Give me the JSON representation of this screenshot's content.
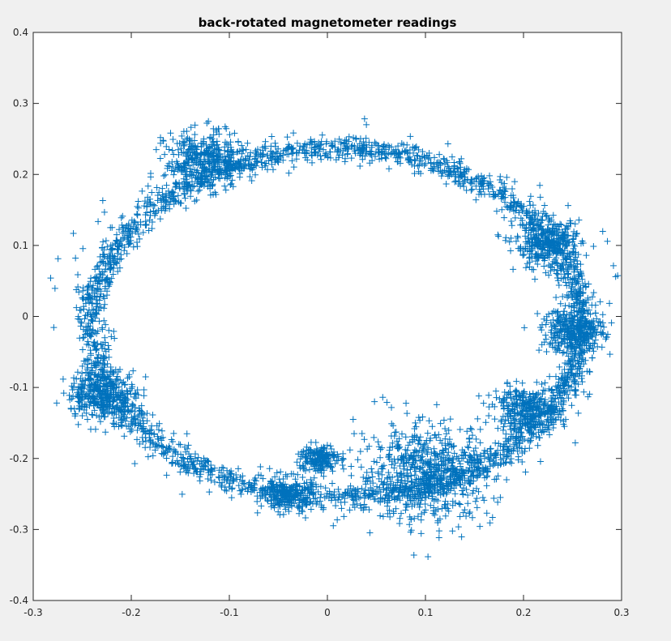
{
  "chart_data": {
    "type": "scatter",
    "title": "back-rotated magnetometer readings",
    "xlabel": "",
    "ylabel": "",
    "xlim": [
      -0.3,
      0.3
    ],
    "ylim": [
      -0.4,
      0.4
    ],
    "xticks": [
      "-0.3",
      "-0.2",
      "-0.1",
      "0",
      "0.1",
      "0.2",
      "0.3"
    ],
    "yticks": [
      "0.4",
      "0.3",
      "0.2",
      "0.1",
      "0",
      "-0.1",
      "-0.2",
      "-0.3",
      "-0.4"
    ],
    "grid": false,
    "legend": "none",
    "marker": "+",
    "color": "#0072BD",
    "series": [
      {
        "ring": {
          "center": [
            0.01,
            -0.01
          ],
          "semi_axes": [
            0.25,
            0.245
          ],
          "tilt_deg": -8,
          "spread": 0.008
        },
        "clusters": [
          {
            "center": [
              -0.125,
              0.22
            ],
            "spread": 0.02
          },
          {
            "center": [
              -0.23,
              -0.11
            ],
            "spread": 0.018
          },
          {
            "center": [
              0.1,
              -0.22
            ],
            "spread": 0.035
          },
          {
            "center": [
              0.225,
              0.1
            ],
            "spread": 0.017
          },
          {
            "center": [
              0.25,
              -0.02
            ],
            "spread": 0.016
          },
          {
            "center": [
              0.2,
              -0.13
            ],
            "spread": 0.015
          },
          {
            "center": [
              -0.01,
              -0.2
            ],
            "spread": 0.01
          },
          {
            "center": [
              -0.04,
              -0.25
            ],
            "spread": 0.012
          }
        ]
      }
    ]
  }
}
